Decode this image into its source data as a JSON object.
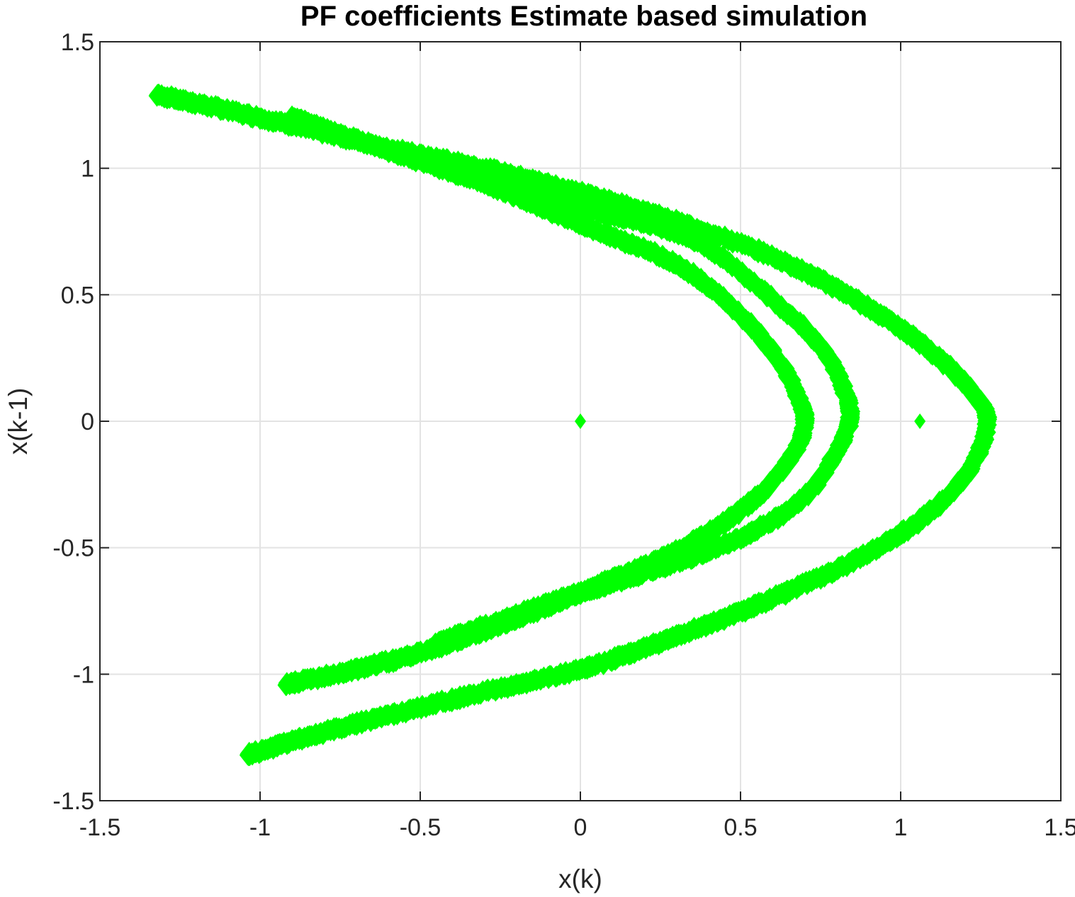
{
  "chart_data": {
    "type": "scatter",
    "title": "PF coefficients Estimate based simulation",
    "xlabel": "x(k)",
    "ylabel": "x(k-1)",
    "xlim": [
      -1.5,
      1.5
    ],
    "ylim": [
      -1.5,
      1.5
    ],
    "xticks": [
      -1.5,
      -1,
      -0.5,
      0,
      0.5,
      1,
      1.5
    ],
    "yticks": [
      -1.5,
      -1,
      -0.5,
      0,
      0.5,
      1,
      1.5
    ],
    "xtick_labels": [
      "-1.5",
      "-1",
      "-0.5",
      "0",
      "0.5",
      "1",
      "1.5"
    ],
    "ytick_labels": [
      "-1.5",
      "-1",
      "-0.5",
      "0",
      "0.5",
      "1",
      "1.5"
    ],
    "grid": true,
    "marker": "diamond",
    "marker_color": "#00ff00",
    "series": [
      {
        "name": "attractor points",
        "description_points": "Hénon-like attractor bands sampled from the figure",
        "bands": [
          {
            "name": "outer band",
            "points": [
              [
                -1.32,
                1.29
              ],
              [
                -1.0,
                1.2
              ],
              [
                -0.6,
                1.08
              ],
              [
                -0.2,
                0.97
              ],
              [
                0.2,
                0.83
              ],
              [
                0.6,
                0.65
              ],
              [
                0.9,
                0.45
              ],
              [
                1.1,
                0.27
              ],
              [
                1.22,
                0.12
              ],
              [
                1.27,
                0.0
              ],
              [
                1.22,
                -0.18
              ],
              [
                1.1,
                -0.35
              ],
              [
                0.9,
                -0.52
              ],
              [
                0.6,
                -0.7
              ],
              [
                0.3,
                -0.85
              ],
              [
                0.0,
                -0.98
              ],
              [
                -0.4,
                -1.1
              ],
              [
                -0.8,
                -1.23
              ],
              [
                -1.04,
                -1.32
              ]
            ]
          },
          {
            "name": "middle band",
            "points": [
              [
                -0.58,
                1.06
              ],
              [
                -0.3,
                0.97
              ],
              [
                0.05,
                0.83
              ],
              [
                0.35,
                0.72
              ],
              [
                0.6,
                0.48
              ],
              [
                0.76,
                0.28
              ],
              [
                0.83,
                0.1
              ],
              [
                0.84,
                0.0
              ],
              [
                0.8,
                -0.12
              ],
              [
                0.7,
                -0.3
              ],
              [
                0.5,
                -0.46
              ],
              [
                0.2,
                -0.6
              ],
              [
                -0.1,
                -0.72
              ],
              [
                -0.45,
                -0.88
              ]
            ]
          },
          {
            "name": "inner band",
            "points": [
              [
                -0.9,
                1.2
              ],
              [
                -0.6,
                1.07
              ],
              [
                -0.3,
                0.94
              ],
              [
                0.0,
                0.78
              ],
              [
                0.3,
                0.62
              ],
              [
                0.5,
                0.42
              ],
              [
                0.63,
                0.22
              ],
              [
                0.69,
                0.06
              ],
              [
                0.7,
                0.0
              ],
              [
                0.67,
                -0.12
              ],
              [
                0.55,
                -0.3
              ],
              [
                0.35,
                -0.48
              ],
              [
                0.05,
                -0.65
              ],
              [
                -0.3,
                -0.83
              ],
              [
                -0.6,
                -0.95
              ],
              [
                -0.92,
                -1.04
              ]
            ]
          }
        ]
      },
      {
        "name": "fixed points",
        "points": [
          [
            0.0,
            0.0
          ],
          [
            1.06,
            0.0
          ]
        ]
      }
    ]
  }
}
